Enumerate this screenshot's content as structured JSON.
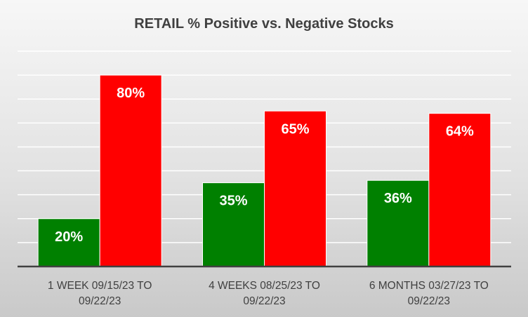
{
  "chart_data": {
    "type": "bar",
    "title": "RETAIL % Positive vs. Negative Stocks",
    "xlabel": "",
    "ylabel": "",
    "ylim": [
      0,
      90
    ],
    "grid": true,
    "legend": "none",
    "categories": [
      [
        "1 WEEK 09/15/23 TO",
        "09/22/23"
      ],
      [
        "4 WEEKS 08/25/23 TO",
        "09/22/23"
      ],
      [
        "6 MONTHS 03/27/23 TO",
        "09/22/23"
      ]
    ],
    "series": [
      {
        "values": [
          20,
          35,
          36
        ],
        "labels": [
          "20%",
          "35%",
          "36%"
        ],
        "color": "#008000"
      },
      {
        "values": [
          80,
          65,
          64
        ],
        "labels": [
          "80%",
          "65%",
          "64%"
        ],
        "color": "#ff0000"
      }
    ]
  }
}
